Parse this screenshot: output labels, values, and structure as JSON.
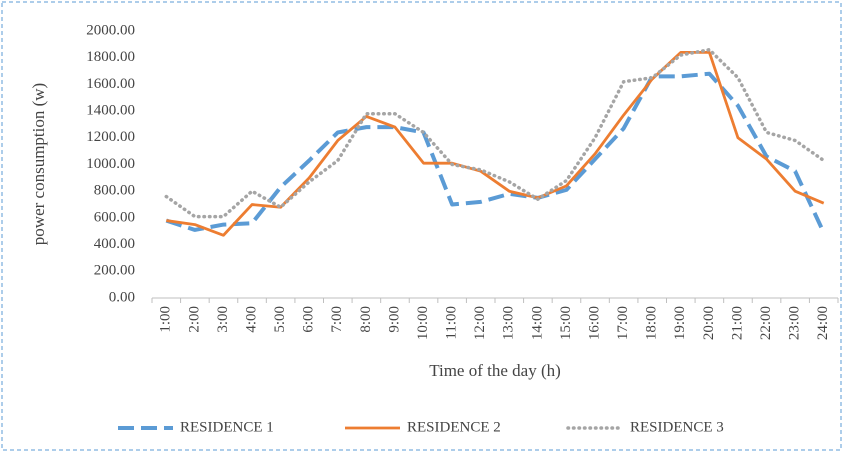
{
  "chart_data": {
    "type": "line",
    "y_label": "power consumption (w)",
    "x_label": "Time of the day  (h)",
    "categories": [
      "1:00",
      "2:00",
      "3:00",
      "4:00",
      "5:00",
      "6:00",
      "7:00",
      "8:00",
      "9:00",
      "10:00",
      "11:00",
      "12:00",
      "13:00",
      "14:00",
      "15:00",
      "16:00",
      "17:00",
      "18:00",
      "19:00",
      "20:00",
      "21:00",
      "22:00",
      "23:00",
      "24:00"
    ],
    "series": [
      {
        "name": "RESIDENCE 1",
        "color": "#5b9bd5",
        "dash": "dashed",
        "values": [
          580,
          510,
          550,
          560,
          830,
          1030,
          1240,
          1280,
          1280,
          1240,
          700,
          720,
          780,
          750,
          810,
          1040,
          1270,
          1660,
          1660,
          1680,
          1440,
          1060,
          950,
          490
        ]
      },
      {
        "name": "RESIDENCE 2",
        "color": "#ed7d31",
        "dash": "solid",
        "values": [
          580,
          550,
          470,
          700,
          680,
          900,
          1180,
          1360,
          1280,
          1010,
          1010,
          950,
          800,
          750,
          840,
          1080,
          1370,
          1640,
          1840,
          1840,
          1200,
          1040,
          800,
          710
        ]
      },
      {
        "name": "RESIDENCE 3",
        "color": "#a5a5a5",
        "dash": "dotted",
        "values": [
          760,
          610,
          610,
          800,
          680,
          870,
          1030,
          1380,
          1380,
          1240,
          1000,
          960,
          870,
          740,
          880,
          1200,
          1620,
          1650,
          1820,
          1860,
          1650,
          1240,
          1180,
          1030
        ]
      }
    ],
    "ylim": [
      0,
      2000
    ],
    "yticks": [
      {
        "value": 0,
        "label": "0.00"
      },
      {
        "value": 200,
        "label": "200.00"
      },
      {
        "value": 400,
        "label": "400.00"
      },
      {
        "value": 600,
        "label": "600.00"
      },
      {
        "value": 800,
        "label": "800.00"
      },
      {
        "value": 1000,
        "label": "1000.00"
      },
      {
        "value": 1200,
        "label": "1200.00"
      },
      {
        "value": 1400,
        "label": "1400.00"
      },
      {
        "value": 1600,
        "label": "1600.00"
      },
      {
        "value": 1800,
        "label": "1800.00"
      },
      {
        "value": 2000,
        "label": "2000.00"
      }
    ],
    "grid": false,
    "legend": "bottom"
  }
}
